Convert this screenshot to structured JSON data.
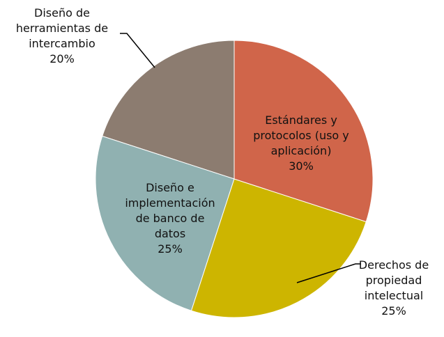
{
  "chart_data": {
    "type": "pie",
    "categories": [
      "Estándares y protocolos (uso y aplicación)",
      "Derechos de propiedad intelectual",
      "Diseño e implementación de banco de datos",
      "Diseño de herramientas de intercambio"
    ],
    "values": [
      30,
      25,
      25,
      20
    ],
    "value_labels": [
      "30%",
      "25%",
      "25%",
      "20%"
    ],
    "colors": [
      "#d0654a",
      "#cdb500",
      "#90b1b1",
      "#8c7c70"
    ]
  }
}
